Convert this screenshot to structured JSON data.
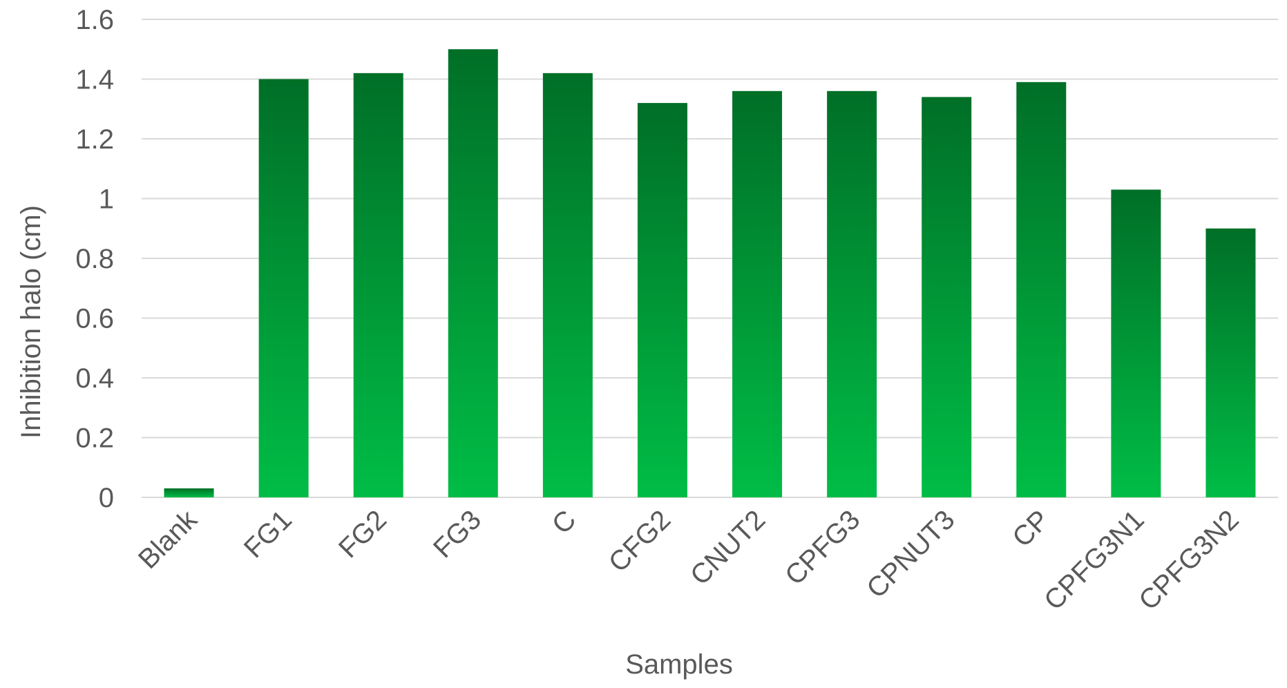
{
  "chart_data": {
    "type": "bar",
    "title": "",
    "xlabel": "Samples",
    "ylabel": "Inhibition halo (cm)",
    "ylim": [
      0,
      1.6
    ],
    "yticks": [
      "0",
      "0.2",
      "0.4",
      "0.6",
      "0.8",
      "1",
      "1.2",
      "1.4",
      "1.6"
    ],
    "grid": true,
    "legend": "none",
    "categories": [
      "Blank",
      "FG1",
      "FG2",
      "FG3",
      "C",
      "CFG2",
      "CNUT2",
      "CPFG3",
      "CPNUT3",
      "CP",
      "CPFG3N1",
      "CPFG3N2"
    ],
    "values": [
      0.03,
      1.4,
      1.42,
      1.5,
      1.42,
      1.32,
      1.36,
      1.36,
      1.34,
      1.39,
      1.03,
      0.9
    ],
    "colors": {
      "bar_top": "#006f27",
      "bar_bottom": "#00bd46",
      "grid": "#d9d9d9",
      "text": "#595959"
    }
  }
}
